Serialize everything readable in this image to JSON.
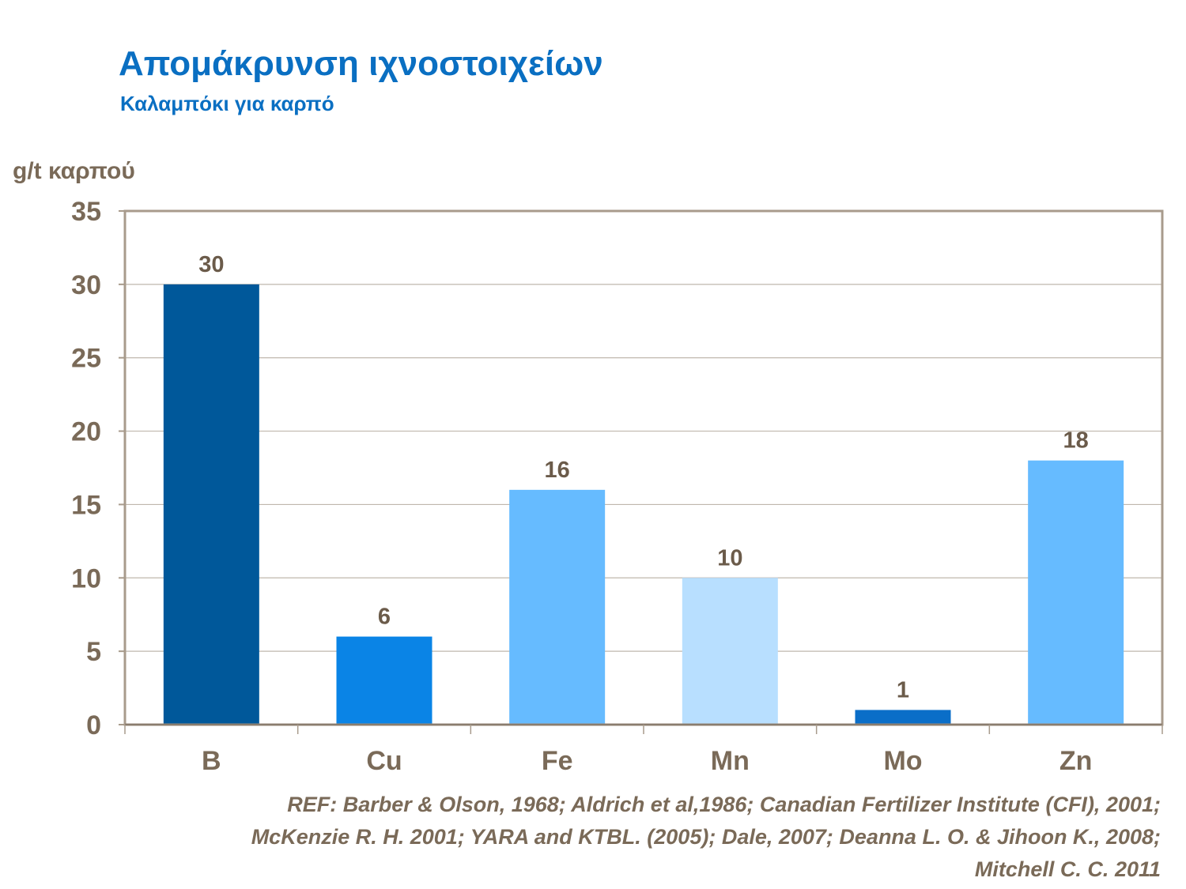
{
  "chart_data": {
    "type": "bar",
    "title": "Απομάκρυνση ιχνοστοιχείων",
    "subtitle": "Καλαμπόκι για καρπό",
    "ylabel": "g/t καρπού",
    "xlabel": "",
    "categories": [
      "B",
      "Cu",
      "Fe",
      "Mn",
      "Mo",
      "Zn"
    ],
    "values": [
      30,
      6,
      16,
      10,
      1,
      18
    ],
    "data_labels": [
      "30",
      "6",
      "16",
      "10",
      "1",
      "18"
    ],
    "bar_colors": [
      "#00589a",
      "#0a84e6",
      "#66bbff",
      "#b8dfff",
      "#0a6ec8",
      "#66bbff"
    ],
    "ylim": [
      0,
      35
    ],
    "yticks": [
      0,
      5,
      10,
      15,
      20,
      25,
      30,
      35
    ],
    "ytick_labels": [
      "0",
      "5",
      "10",
      "15",
      "20",
      "25",
      "30",
      "35"
    ],
    "grid": true,
    "legend": "none"
  },
  "reference": "REF: Barber & Olson, 1968; Aldrich et al,1986; Canadian Fertilizer Institute (CFI), 2001;\nMcKenzie R. H. 2001; YARA and KTBL. (2005); Dale, 2007; Deanna L. O. & Jihoon K.,  2008;\nMitchell C. C. 2011",
  "colors": {
    "title": "#0a6fc2",
    "text": "#7a6a58",
    "grid": "#bfb7ad",
    "plot_border": "#a89b8c"
  }
}
